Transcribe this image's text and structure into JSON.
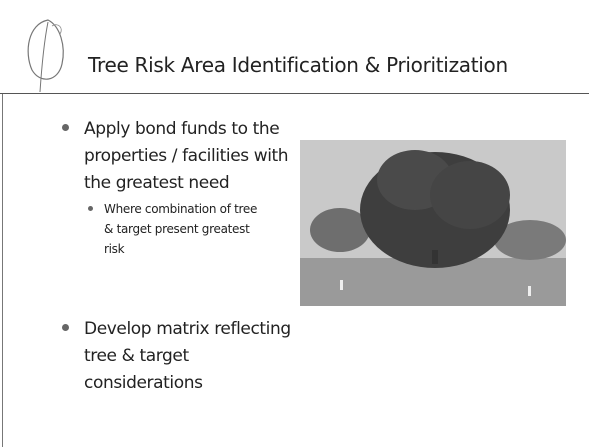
{
  "slide": {
    "title": "Tree Risk Area Identification & Prioritization",
    "bullets": [
      {
        "lines": [
          "Apply bond funds to the",
          "properties / facilities with",
          "the greatest need"
        ],
        "sub_bullets": [
          {
            "lines": [
              "Where combination of tree",
              "& target present greatest",
              "risk"
            ]
          }
        ]
      },
      {
        "lines": [
          "Develop matrix reflecting",
          "tree & target",
          "considerations"
        ],
        "sub_bullets": []
      }
    ]
  }
}
